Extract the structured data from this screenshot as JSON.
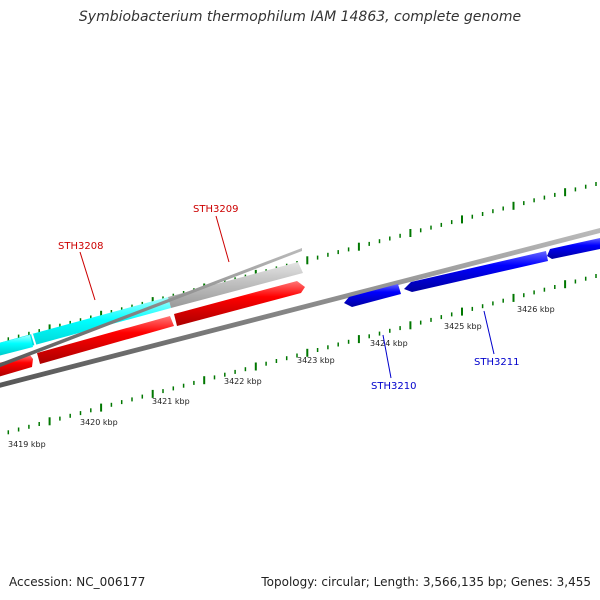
{
  "title": "Symbiobacterium thermophilum IAM 14863, complete genome",
  "footer": {
    "accession": "Accession: NC_006177",
    "summary": "Topology: circular; Length: 3,566,135 bp; Genes: 3,455"
  },
  "colors": {
    "forward_cds": "#ff0000",
    "reverse_cds": "#0000ff",
    "cyan_feature": "#00ffff",
    "gray_feature": "#bbbbbb",
    "backbone": "#888888",
    "tick": "#007700",
    "forward_label": "#cc0000",
    "reverse_label": "#0000cc"
  },
  "scale": {
    "unit": "kbp",
    "labels": [
      "3419 kbp",
      "3420 kbp",
      "3421 kbp",
      "3422 kbp",
      "3423 kbp",
      "3424 kbp",
      "3425 kbp",
      "3426 kbp"
    ]
  },
  "genes": {
    "forward": [
      "STH3208",
      "STH3209"
    ],
    "reverse": [
      "STH3210",
      "STH3211"
    ]
  }
}
